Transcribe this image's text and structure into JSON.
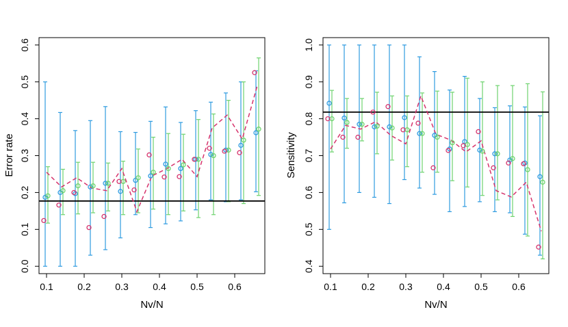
{
  "colors": {
    "blue": "#2e9be0",
    "green": "#6ed36e",
    "red": "#d6336c",
    "axis": "#000000"
  },
  "chart_data": [
    {
      "type": "scatter",
      "xlabel": "Nv/N",
      "ylabel": "Error rate",
      "xlim": [
        0.08,
        0.68
      ],
      "ylim": [
        -0.02,
        0.62
      ],
      "xticks": [
        0.1,
        0.2,
        0.3,
        0.4,
        0.5,
        0.6
      ],
      "xtick_labels": [
        "0.1",
        "0.2",
        "0.3",
        "0.4",
        "0.5",
        "0.6"
      ],
      "yticks": [
        0.0,
        0.1,
        0.2,
        0.3,
        0.4,
        0.5,
        0.6
      ],
      "ytick_labels": [
        "0.0",
        "0.1",
        "0.2",
        "0.3",
        "0.4",
        "0.5",
        "0.6"
      ],
      "hline": 0.177,
      "series": [
        {
          "color": "blue",
          "kind": "points_with_errorbars",
          "x": [
            0.1,
            0.14,
            0.18,
            0.22,
            0.26,
            0.3,
            0.34,
            0.38,
            0.42,
            0.46,
            0.5,
            0.54,
            0.58,
            0.62,
            0.66
          ],
          "y": [
            0.187,
            0.2,
            0.197,
            0.215,
            0.225,
            0.203,
            0.233,
            0.245,
            0.277,
            0.265,
            0.29,
            0.303,
            0.315,
            0.328,
            0.362
          ],
          "lower": [
            0.0,
            0.0,
            0.0,
            0.03,
            0.045,
            0.077,
            0.14,
            0.105,
            0.115,
            0.123,
            0.153,
            0.18,
            0.175,
            0.18,
            0.202
          ],
          "upper": [
            0.5,
            0.417,
            0.368,
            0.395,
            0.433,
            0.365,
            0.363,
            0.393,
            0.432,
            0.39,
            0.422,
            0.445,
            0.47,
            0.5,
            0.53
          ]
        },
        {
          "color": "green",
          "kind": "points_with_errorbars",
          "x": [
            0.1,
            0.14,
            0.18,
            0.22,
            0.26,
            0.3,
            0.34,
            0.38,
            0.42,
            0.46,
            0.5,
            0.54,
            0.58,
            0.62,
            0.66
          ],
          "y": [
            0.191,
            0.205,
            0.218,
            0.218,
            0.225,
            0.23,
            0.24,
            0.255,
            0.265,
            0.275,
            0.29,
            0.3,
            0.315,
            0.342,
            0.372
          ],
          "lower": [
            0.117,
            0.14,
            0.142,
            0.145,
            0.15,
            0.14,
            0.145,
            0.155,
            0.14,
            0.15,
            0.132,
            0.14,
            0.175,
            0.17,
            0.192
          ],
          "upper": [
            0.27,
            0.263,
            0.282,
            0.282,
            0.28,
            0.285,
            0.318,
            0.35,
            0.36,
            0.358,
            0.398,
            0.413,
            0.45,
            0.5,
            0.565
          ]
        },
        {
          "color": "red",
          "kind": "points",
          "x": [
            0.1,
            0.14,
            0.18,
            0.22,
            0.26,
            0.3,
            0.34,
            0.38,
            0.42,
            0.46,
            0.5,
            0.54,
            0.58,
            0.62,
            0.66
          ],
          "y": [
            0.124,
            0.166,
            0.2,
            0.105,
            0.135,
            0.23,
            0.207,
            0.302,
            0.242,
            0.243,
            0.29,
            0.32,
            0.312,
            0.308,
            0.525
          ]
        },
        {
          "color": "red",
          "kind": "dashed_line",
          "x": [
            0.1,
            0.14,
            0.18,
            0.22,
            0.26,
            0.3,
            0.34,
            0.38,
            0.42,
            0.46,
            0.5,
            0.54,
            0.58,
            0.62,
            0.66
          ],
          "y": [
            0.255,
            0.215,
            0.24,
            0.212,
            0.205,
            0.265,
            0.148,
            0.245,
            0.265,
            0.29,
            0.243,
            0.375,
            0.41,
            0.345,
            0.49
          ]
        }
      ]
    },
    {
      "type": "scatter",
      "xlabel": "Nv/N",
      "ylabel": "Sensitivity",
      "xlim": [
        0.08,
        0.68
      ],
      "ylim": [
        0.38,
        1.02
      ],
      "xticks": [
        0.1,
        0.2,
        0.3,
        0.4,
        0.5,
        0.6
      ],
      "xtick_labels": [
        "0.1",
        "0.2",
        "0.3",
        "0.4",
        "0.5",
        "0.6"
      ],
      "yticks": [
        0.4,
        0.5,
        0.6,
        0.7,
        0.8,
        0.9,
        1.0
      ],
      "ytick_labels": [
        "0.4",
        "0.5",
        "0.6",
        "0.7",
        "0.8",
        "0.9",
        "1.0"
      ],
      "hline": 0.818,
      "series": [
        {
          "color": "blue",
          "kind": "points_with_errorbars",
          "x": [
            0.1,
            0.14,
            0.18,
            0.22,
            0.26,
            0.3,
            0.34,
            0.38,
            0.42,
            0.46,
            0.5,
            0.54,
            0.58,
            0.62,
            0.66
          ],
          "y": [
            0.842,
            0.802,
            0.785,
            0.778,
            0.778,
            0.803,
            0.76,
            0.755,
            0.718,
            0.738,
            0.715,
            0.705,
            0.688,
            0.68,
            0.643
          ],
          "lower": [
            0.5,
            0.572,
            0.6,
            0.587,
            0.57,
            0.635,
            0.612,
            0.595,
            0.548,
            0.562,
            0.575,
            0.548,
            0.545,
            0.487,
            0.43
          ],
          "upper": [
            1.0,
            1.0,
            1.0,
            1.0,
            1.0,
            1.0,
            0.968,
            0.928,
            0.878,
            0.915,
            0.855,
            0.83,
            0.835,
            0.832,
            0.808
          ]
        },
        {
          "color": "green",
          "kind": "points_with_errorbars",
          "x": [
            0.1,
            0.14,
            0.18,
            0.22,
            0.26,
            0.3,
            0.34,
            0.38,
            0.42,
            0.46,
            0.5,
            0.54,
            0.58,
            0.62,
            0.66
          ],
          "y": [
            0.8,
            0.79,
            0.785,
            0.78,
            0.775,
            0.77,
            0.76,
            0.75,
            0.735,
            0.73,
            0.712,
            0.705,
            0.692,
            0.662,
            0.628
          ],
          "lower": [
            0.71,
            0.72,
            0.74,
            0.705,
            0.688,
            0.67,
            0.655,
            0.655,
            0.632,
            0.615,
            0.592,
            0.58,
            0.535,
            0.482,
            0.42
          ],
          "upper": [
            0.877,
            0.855,
            0.855,
            0.872,
            0.862,
            0.862,
            0.87,
            0.875,
            0.872,
            0.91,
            0.9,
            0.89,
            0.89,
            0.895,
            0.873
          ]
        },
        {
          "color": "red",
          "kind": "points",
          "x": [
            0.1,
            0.14,
            0.18,
            0.22,
            0.26,
            0.3,
            0.34,
            0.38,
            0.42,
            0.46,
            0.5,
            0.54,
            0.58,
            0.62,
            0.66
          ],
          "y": [
            0.8,
            0.75,
            0.75,
            0.818,
            0.833,
            0.77,
            0.788,
            0.667,
            0.714,
            0.727,
            0.765,
            0.667,
            0.68,
            0.678,
            0.452
          ]
        },
        {
          "color": "red",
          "kind": "dashed_line",
          "x": [
            0.1,
            0.14,
            0.18,
            0.22,
            0.26,
            0.3,
            0.34,
            0.38,
            0.42,
            0.46,
            0.5,
            0.54,
            0.58,
            0.62,
            0.66
          ],
          "y": [
            0.718,
            0.782,
            0.772,
            0.792,
            0.755,
            0.732,
            0.862,
            0.758,
            0.742,
            0.71,
            0.74,
            0.605,
            0.588,
            0.628,
            0.495
          ]
        }
      ]
    }
  ]
}
